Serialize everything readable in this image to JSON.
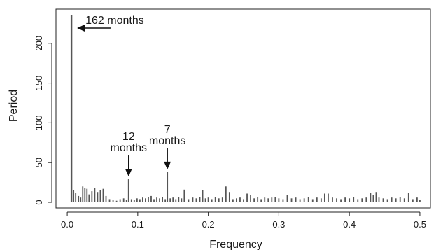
{
  "chart_data": {
    "type": "bar",
    "title": "",
    "xlabel": "Frequency",
    "ylabel": "Period",
    "xlim": [
      -0.01,
      0.51
    ],
    "ylim": [
      0,
      235
    ],
    "x_ticks": [
      0.0,
      0.1,
      0.2,
      0.3,
      0.4,
      0.5
    ],
    "x_tick_labels": [
      "0.0",
      "0.1",
      "0.2",
      "0.3",
      "0.4",
      "0.5"
    ],
    "y_ticks": [
      0,
      50,
      100,
      150,
      200
    ],
    "y_tick_labels": [
      "0",
      "50",
      "100",
      "150",
      "200"
    ],
    "grid": false,
    "legend": "none",
    "bar_color": "#555555",
    "bars": {
      "x": [
        0.006,
        0.009,
        0.012,
        0.016,
        0.019,
        0.022,
        0.025,
        0.028,
        0.031,
        0.035,
        0.039,
        0.043,
        0.047,
        0.051,
        0.055,
        0.06,
        0.065,
        0.07,
        0.075,
        0.08,
        0.084,
        0.087,
        0.091,
        0.095,
        0.099,
        0.103,
        0.107,
        0.111,
        0.115,
        0.119,
        0.123,
        0.127,
        0.131,
        0.135,
        0.139,
        0.142,
        0.146,
        0.15,
        0.154,
        0.158,
        0.162,
        0.166,
        0.172,
        0.178,
        0.183,
        0.188,
        0.192,
        0.196,
        0.2,
        0.205,
        0.21,
        0.215,
        0.22,
        0.225,
        0.23,
        0.235,
        0.24,
        0.245,
        0.25,
        0.255,
        0.26,
        0.265,
        0.27,
        0.275,
        0.28,
        0.285,
        0.29,
        0.295,
        0.3,
        0.306,
        0.312,
        0.318,
        0.324,
        0.33,
        0.336,
        0.342,
        0.348,
        0.354,
        0.36,
        0.365,
        0.37,
        0.376,
        0.382,
        0.388,
        0.394,
        0.4,
        0.406,
        0.412,
        0.418,
        0.424,
        0.43,
        0.434,
        0.438,
        0.442,
        0.448,
        0.454,
        0.46,
        0.466,
        0.472,
        0.478,
        0.484,
        0.49,
        0.496,
        0.5
      ],
      "y": [
        235,
        15,
        12,
        8,
        6,
        20,
        18,
        17,
        10,
        14,
        18,
        13,
        15,
        17,
        8,
        4,
        3,
        2,
        4,
        5,
        3,
        29,
        4,
        3,
        5,
        4,
        6,
        5,
        7,
        8,
        4,
        6,
        5,
        7,
        4,
        38,
        5,
        6,
        4,
        7,
        5,
        16,
        4,
        6,
        5,
        7,
        15,
        5,
        6,
        4,
        7,
        5,
        6,
        20,
        13,
        4,
        5,
        6,
        4,
        11,
        9,
        5,
        7,
        4,
        6,
        5,
        6,
        7,
        5,
        4,
        9,
        5,
        6,
        4,
        5,
        7,
        4,
        6,
        5,
        11,
        11,
        6,
        5,
        4,
        6,
        5,
        7,
        4,
        5,
        6,
        12,
        9,
        13,
        6,
        5,
        4,
        6,
        5,
        7,
        5,
        12,
        4,
        6,
        3
      ]
    },
    "annotations": [
      {
        "label_lines": [
          "162 months"
        ],
        "x": 0.006,
        "y": 235,
        "arrow": "left"
      },
      {
        "label_lines": [
          "12",
          "months"
        ],
        "x": 0.087,
        "y": 29,
        "arrow": "down"
      },
      {
        "label_lines": [
          "7",
          "months"
        ],
        "x": 0.142,
        "y": 38,
        "arrow": "down"
      }
    ]
  }
}
